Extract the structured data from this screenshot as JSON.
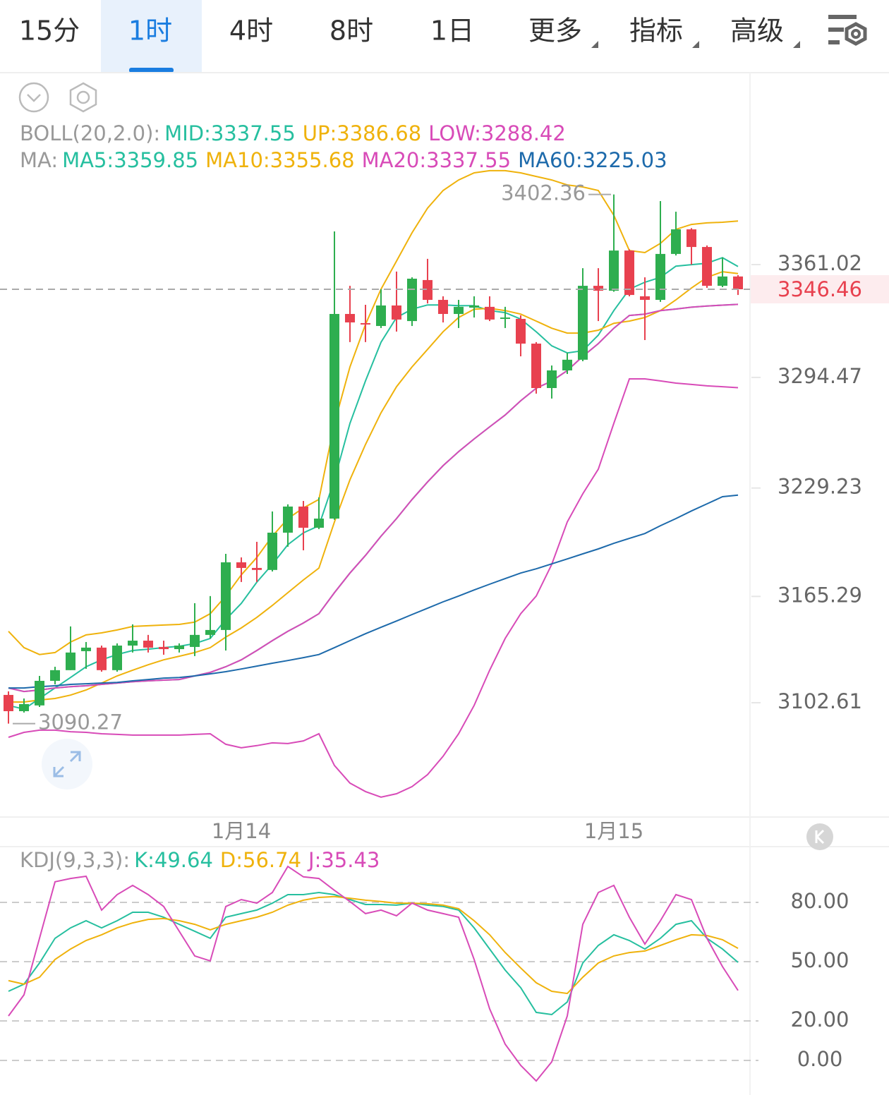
{
  "tabs": [
    "15分",
    "1时",
    "4时",
    "8时",
    "1日",
    "更多",
    "指标",
    "高级"
  ],
  "active_tab": "1时",
  "chart_data": [
    {
      "type": "candlestick",
      "categories": [
        null,
        null,
        null,
        null,
        null,
        null,
        null,
        null,
        null,
        null,
        null,
        null,
        null,
        null,
        null,
        "1月14",
        null,
        null,
        null,
        null,
        null,
        null,
        null,
        null,
        null,
        null,
        null,
        null,
        null,
        null,
        null,
        null,
        null,
        null,
        null,
        null,
        null,
        null,
        null,
        "1月15",
        null,
        null,
        null,
        null,
        null,
        null,
        null,
        null
      ],
      "open": [
        3107.2,
        3097.6,
        3101.0,
        3115.5,
        3121.8,
        3133.0,
        3135.1,
        3121.8,
        3136.3,
        3139.2,
        3135.5,
        3134.2,
        3135.5,
        3142.6,
        3145.5,
        3185.4,
        3182.1,
        3180.9,
        3202.9,
        3218.3,
        3205.8,
        3211.2,
        3331.9,
        3326.5,
        3324.8,
        3336.9,
        3327.7,
        3351.9,
        3340.2,
        3331.9,
        3335.6,
        3336.1,
        3329.0,
        3329.0,
        3314.4,
        3288.2,
        3298.6,
        3304.9,
        3348.5,
        3345.6,
        3369.3,
        3342.3,
        3340.2,
        3367.3,
        3381.8,
        3371.4,
        3348.5,
        3354.0
      ],
      "high": [
        3109.3,
        3105.1,
        3118.4,
        3123.8,
        3147.6,
        3138.4,
        3136.3,
        3137.6,
        3148.8,
        3142.6,
        3139.2,
        3137.6,
        3161.3,
        3165.5,
        3190.4,
        3188.3,
        3197.5,
        3215.4,
        3219.6,
        3221.6,
        3223.7,
        3380.6,
        3348.5,
        3337.3,
        3346.5,
        3356.9,
        3353.5,
        3364.4,
        3342.3,
        3340.2,
        3342.3,
        3342.3,
        3336.1,
        3331.1,
        3315.3,
        3301.5,
        3309.0,
        3358.9,
        3358.9,
        3402.36,
        3370.0,
        3353.5,
        3398.5,
        3392.2,
        3382.5,
        3372.3,
        3365.2,
        3354.8
      ],
      "low": [
        3090.27,
        3096.8,
        3100.1,
        3113.4,
        3121.8,
        3122.6,
        3120.9,
        3120.9,
        3132.2,
        3132.2,
        3130.9,
        3132.2,
        3130.1,
        3140.5,
        3133.4,
        3173.8,
        3173.8,
        3180.0,
        3194.6,
        3192.5,
        3205.0,
        3210.5,
        3315.3,
        3315.3,
        3323.6,
        3321.5,
        3324.8,
        3338.1,
        3326.9,
        3323.6,
        3329.8,
        3327.7,
        3323.6,
        3306.9,
        3284.9,
        3282.0,
        3296.5,
        3304.0,
        3327.7,
        3345.0,
        3342.3,
        3316.5,
        3339.0,
        3366.4,
        3361.0,
        3347.3,
        3347.7,
        3343.1
      ],
      "close": [
        3097.6,
        3101.8,
        3115.5,
        3121.8,
        3132.2,
        3135.1,
        3121.8,
        3136.3,
        3139.2,
        3135.1,
        3134.2,
        3136.3,
        3142.6,
        3145.5,
        3185.4,
        3182.1,
        3180.9,
        3202.9,
        3218.3,
        3205.8,
        3211.2,
        3331.9,
        3326.9,
        3325.7,
        3336.9,
        3328.6,
        3352.7,
        3340.2,
        3331.9,
        3336.1,
        3336.9,
        3328.6,
        3329.8,
        3314.4,
        3288.2,
        3298.6,
        3304.9,
        3348.5,
        3345.6,
        3369.3,
        3343.1,
        3340.2,
        3367.3,
        3381.8,
        3371.4,
        3348.5,
        3354.0,
        3346.46
      ],
      "up_color": "#2eae4f",
      "down_color": "#e8414f",
      "ylim": [
        3035.18,
        3473.38
      ],
      "yticks": [
        3361.02,
        3294.47,
        3229.23,
        3165.29,
        3102.61
      ],
      "legend_groups": [
        {
          "label": "BOLL(20,2.0):",
          "series": [
            {
              "name": "MID:3337.55",
              "color": "#26bf9f",
              "values": [
                3111.3,
                3109.2,
                3110.1,
                3111.3,
                3112.1,
                3112.6,
                3113.4,
                3114.2,
                3115.0,
                3115.5,
                3115.9,
                3116.3,
                3118.4,
                3120.5,
                3123.8,
                3127.9,
                3133.4,
                3139.2,
                3144.7,
                3149.6,
                3155.1,
                3167.5,
                3179.1,
                3189.5,
                3200.8,
                3211.2,
                3222.5,
                3232.8,
                3242.4,
                3250.7,
                3258.2,
                3265.3,
                3272.3,
                3280.7,
                3288.1,
                3292.3,
                3298.5,
                3306.9,
                3314.4,
                3323.5,
                3331.0,
                3331.8,
                3333.9,
                3334.8,
                3335.9,
                3336.6,
                3337.1,
                3337.55
              ]
            },
            {
              "name": "UP:3386.68",
              "color": "#efb20c",
              "values": [
                3144.7,
                3135.1,
                3131.0,
                3132.2,
                3138.4,
                3142.6,
                3143.8,
                3145.5,
                3147.6,
                3148.0,
                3148.4,
                3148.8,
                3150.1,
                3155.1,
                3165.5,
                3178.0,
                3188.3,
                3200.8,
                3211.2,
                3217.5,
                3222.5,
                3267.4,
                3300.7,
                3325.7,
                3346.5,
                3363.1,
                3379.8,
                3394.3,
                3404.7,
                3410.9,
                3415.1,
                3416.4,
                3416.4,
                3415.1,
                3413.0,
                3410.9,
                3408.0,
                3406.8,
                3404.7,
                3390.1,
                3369.3,
                3368.1,
                3373.5,
                3381.8,
                3384.7,
                3385.6,
                3386.0,
                3386.68
              ]
            },
            {
              "name": "LOW:3288.42",
              "color": "#d84bb8",
              "values": [
                3082.2,
                3085.1,
                3086.4,
                3086.4,
                3085.5,
                3085.1,
                3084.3,
                3083.9,
                3083.5,
                3083.5,
                3083.5,
                3083.5,
                3083.9,
                3084.3,
                3078.1,
                3076.0,
                3077.3,
                3078.9,
                3078.5,
                3080.1,
                3084.3,
                3065.6,
                3055.2,
                3050.2,
                3046.9,
                3048.9,
                3053.1,
                3060.2,
                3071.0,
                3084.3,
                3101.0,
                3121.8,
                3140.5,
                3155.1,
                3165.5,
                3184.2,
                3209.2,
                3225.8,
                3240.4,
                3267.4,
                3293.6,
                3293.6,
                3292.4,
                3291.1,
                3290.3,
                3289.5,
                3289.0,
                3288.42
              ]
            }
          ]
        },
        {
          "label": "MA:",
          "series": [
            {
              "name": "MA5:3359.85",
              "color": "#26bf9f",
              "values": [
                3101.0,
                3098.8,
                3105.1,
                3111.3,
                3117.5,
                3123.8,
                3127.9,
                3131.0,
                3133.4,
                3134.2,
                3135.1,
                3135.9,
                3137.5,
                3140.5,
                3151.7,
                3161.2,
                3173.7,
                3184.2,
                3195.8,
                3202.8,
                3207.0,
                3234.1,
                3267.4,
                3292.4,
                3315.2,
                3329.8,
                3334.7,
                3337.2,
                3337.2,
                3336.8,
                3336.8,
                3333.9,
                3332.7,
                3328.9,
                3321.4,
                3313.1,
                3308.9,
                3310.2,
                3319.4,
                3333.9,
                3346.5,
                3350.6,
                3353.5,
                3360.1,
                3361.0,
                3361.8,
                3365.1,
                3359.85
              ]
            },
            {
              "name": "MA10:3355.68",
              "color": "#efb20c",
              "values": [
                3103.0,
                3103.0,
                3104.2,
                3105.1,
                3107.1,
                3110.1,
                3114.2,
                3118.4,
                3121.8,
                3125.0,
                3127.9,
                3130.0,
                3132.2,
                3135.1,
                3141.3,
                3146.7,
                3152.9,
                3160.0,
                3167.5,
                3175.0,
                3182.0,
                3209.2,
                3234.1,
                3254.9,
                3273.6,
                3289.0,
                3300.7,
                3311.0,
                3321.4,
                3329.8,
                3334.7,
                3335.2,
                3333.9,
                3331.8,
                3327.7,
                3323.5,
                3320.6,
                3320.6,
                3322.3,
                3326.4,
                3327.7,
                3329.8,
                3333.9,
                3340.2,
                3347.2,
                3353.5,
                3356.8,
                3355.68
              ]
            },
            {
              "name": "MA20:3337.55",
              "color": "#d84bb8",
              "values": [
                3111.3,
                3109.2,
                3110.1,
                3111.3,
                3112.1,
                3112.6,
                3113.4,
                3114.2,
                3115.0,
                3115.5,
                3115.9,
                3116.3,
                3118.4,
                3120.5,
                3123.8,
                3127.9,
                3133.4,
                3139.2,
                3144.7,
                3149.6,
                3155.1,
                3167.5,
                3179.1,
                3189.5,
                3200.8,
                3211.2,
                3222.5,
                3232.8,
                3242.4,
                3250.7,
                3258.2,
                3265.3,
                3272.3,
                3280.7,
                3288.1,
                3292.3,
                3298.5,
                3306.9,
                3314.4,
                3323.5,
                3331.0,
                3331.8,
                3333.9,
                3334.8,
                3335.9,
                3336.6,
                3337.1,
                3337.55
              ]
            },
            {
              "name": "MA60:3225.03",
              "color": "#1d6aab",
              "values": [
                3111.3,
                3111.3,
                3112.1,
                3112.6,
                3113.4,
                3113.8,
                3114.2,
                3114.6,
                3115.5,
                3116.3,
                3117.1,
                3117.5,
                3118.4,
                3119.6,
                3120.9,
                3122.5,
                3124.2,
                3125.9,
                3127.5,
                3129.2,
                3131.0,
                3135.1,
                3139.2,
                3143.3,
                3147.1,
                3150.8,
                3154.6,
                3158.3,
                3162.1,
                3165.5,
                3169.1,
                3172.5,
                3175.8,
                3179.1,
                3181.6,
                3184.5,
                3187.4,
                3190.4,
                3193.3,
                3196.6,
                3199.5,
                3202.4,
                3207.0,
                3211.2,
                3215.7,
                3219.9,
                3224.1,
                3225.03
              ]
            }
          ]
        }
      ]
    },
    {
      "type": "line",
      "label": "KDJ(9,3,3):",
      "ylim": [
        -17.5,
        108.2
      ],
      "yticks": [
        {
          "value": 80,
          "label": "80.00"
        },
        {
          "value": 50,
          "label": "50.00"
        },
        {
          "value": 20,
          "label": "20.00"
        },
        {
          "value": 0,
          "label": "0.00"
        }
      ],
      "grid": true,
      "series": [
        {
          "name": "K:49.64",
          "color": "#26bf9f",
          "values": [
            35.0,
            38.6,
            49.3,
            61.8,
            67.1,
            70.7,
            67.1,
            70.7,
            75.0,
            75.0,
            72.5,
            68.9,
            65.4,
            61.8,
            72.5,
            74.3,
            76.1,
            79.6,
            83.9,
            83.9,
            85.0,
            83.9,
            81.4,
            78.9,
            78.9,
            78.6,
            79.6,
            78.6,
            77.9,
            76.1,
            67.1,
            56.4,
            45.7,
            36.8,
            24.3,
            23.2,
            29.6,
            49.3,
            58.2,
            63.6,
            60.7,
            56.4,
            61.8,
            68.9,
            70.7,
            61.8,
            56.4,
            49.64
          ]
        },
        {
          "name": "D:56.74",
          "color": "#efb20c",
          "values": [
            40.4,
            38.6,
            42.1,
            51.1,
            56.4,
            60.7,
            63.6,
            67.1,
            69.6,
            71.4,
            71.8,
            70.7,
            68.9,
            66.1,
            68.9,
            70.7,
            72.5,
            75.0,
            78.6,
            81.1,
            82.5,
            82.9,
            82.1,
            81.1,
            80.4,
            79.6,
            79.6,
            79.3,
            78.6,
            76.8,
            70.7,
            63.6,
            54.6,
            46.8,
            39.3,
            35.0,
            33.9,
            42.1,
            49.3,
            52.9,
            54.6,
            55.4,
            58.2,
            61.1,
            63.6,
            63.2,
            61.1,
            56.74
          ]
        },
        {
          "name": "J:35.43",
          "color": "#d84bb8",
          "values": [
            22.5,
            33.2,
            61.8,
            90.4,
            92.1,
            93.2,
            76.1,
            83.9,
            88.6,
            83.9,
            77.9,
            65.4,
            52.9,
            50.4,
            77.9,
            81.4,
            79.6,
            85.0,
            98.2,
            92.9,
            92.1,
            86.1,
            80.4,
            74.3,
            76.1,
            73.2,
            79.6,
            76.1,
            74.3,
            72.5,
            51.1,
            26.1,
            8.2,
            -2.5,
            -10.4,
            -0.7,
            22.5,
            68.9,
            85.0,
            88.6,
            72.5,
            58.9,
            70.7,
            83.9,
            81.4,
            61.8,
            47.5,
            35.43
          ]
        }
      ]
    }
  ]
}
